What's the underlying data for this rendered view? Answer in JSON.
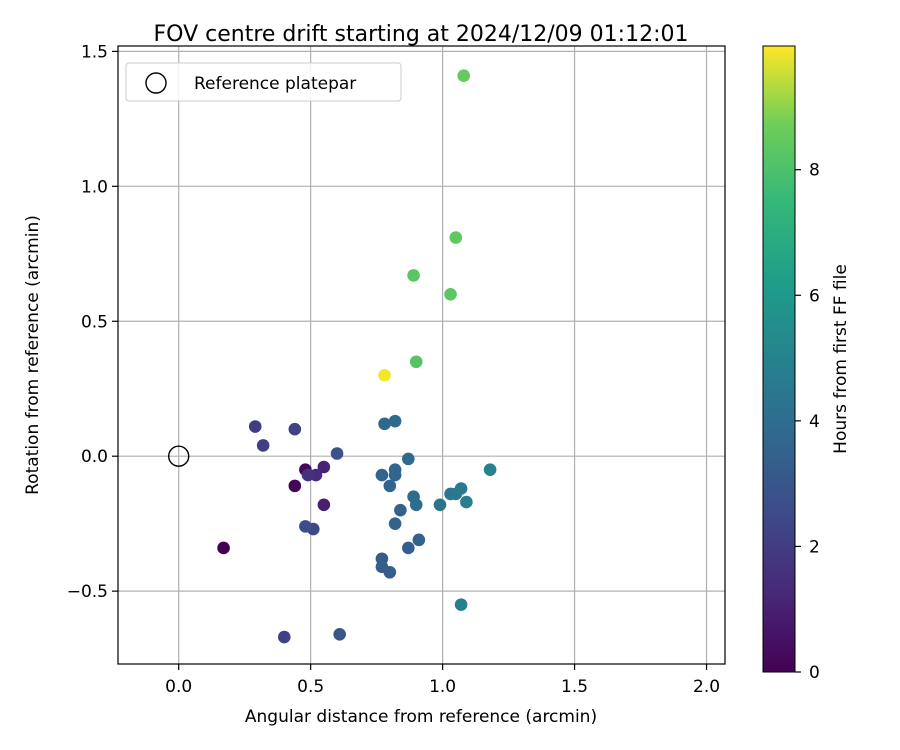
{
  "chart_data": {
    "type": "scatter",
    "title": "FOV centre drift starting at 2024/12/09 01:12:01",
    "xlabel": "Angular distance from reference (arcmin)",
    "ylabel": "Rotation from reference (arcmin)",
    "xlim": [
      -0.23,
      2.07
    ],
    "ylim": [
      -0.77,
      1.52
    ],
    "xticks": [
      0.0,
      0.5,
      1.0,
      1.5,
      2.0
    ],
    "xtick_labels": [
      "0.0",
      "0.5",
      "1.0",
      "1.5",
      "2.0"
    ],
    "yticks": [
      -0.5,
      0.0,
      0.5,
      1.0,
      1.5
    ],
    "ytick_labels": [
      "−0.5",
      "0.0",
      "0.5",
      "1.0",
      "1.5"
    ],
    "grid": true,
    "legend": {
      "placement": "top-left",
      "entries": [
        "Reference platepar"
      ]
    },
    "reference_point": {
      "x": 0.0,
      "y": 0.0,
      "label": "Reference platepar"
    },
    "colorbar": {
      "label": "Hours from first FF file",
      "colormap": "viridis",
      "range": [
        0,
        9.97
      ],
      "ticks": [
        0,
        2,
        4,
        6,
        8
      ],
      "tick_labels": [
        "0",
        "2",
        "4",
        "6",
        "8"
      ]
    },
    "points": [
      {
        "x": 0.17,
        "y": -0.34,
        "hours": 0.0
      },
      {
        "x": 0.44,
        "y": -0.11,
        "hours": 0.1
      },
      {
        "x": 0.48,
        "y": -0.05,
        "hours": 0.2
      },
      {
        "x": 0.55,
        "y": -0.18,
        "hours": 1.0
      },
      {
        "x": 0.55,
        "y": -0.04,
        "hours": 1.1
      },
      {
        "x": 0.52,
        "y": -0.07,
        "hours": 1.4
      },
      {
        "x": 0.49,
        "y": -0.07,
        "hours": 1.6
      },
      {
        "x": 0.29,
        "y": 0.11,
        "hours": 2.0
      },
      {
        "x": 0.32,
        "y": 0.04,
        "hours": 2.1
      },
      {
        "x": 0.44,
        "y": 0.1,
        "hours": 2.2
      },
      {
        "x": 0.4,
        "y": -0.67,
        "hours": 2.2
      },
      {
        "x": 0.51,
        "y": -0.27,
        "hours": 2.4
      },
      {
        "x": 0.48,
        "y": -0.26,
        "hours": 2.6
      },
      {
        "x": 0.6,
        "y": 0.01,
        "hours": 2.9
      },
      {
        "x": 0.61,
        "y": -0.66,
        "hours": 3.0
      },
      {
        "x": 0.77,
        "y": -0.38,
        "hours": 3.2
      },
      {
        "x": 0.77,
        "y": -0.41,
        "hours": 3.3
      },
      {
        "x": 0.8,
        "y": -0.43,
        "hours": 3.3
      },
      {
        "x": 0.87,
        "y": -0.34,
        "hours": 3.4
      },
      {
        "x": 0.91,
        "y": -0.31,
        "hours": 3.5
      },
      {
        "x": 0.82,
        "y": -0.25,
        "hours": 3.5
      },
      {
        "x": 0.84,
        "y": -0.2,
        "hours": 3.5
      },
      {
        "x": 0.8,
        "y": -0.11,
        "hours": 3.6
      },
      {
        "x": 0.77,
        "y": -0.07,
        "hours": 3.6
      },
      {
        "x": 0.82,
        "y": -0.05,
        "hours": 3.7
      },
      {
        "x": 0.82,
        "y": -0.07,
        "hours": 3.7
      },
      {
        "x": 0.87,
        "y": -0.01,
        "hours": 3.8
      },
      {
        "x": 0.78,
        "y": 0.12,
        "hours": 3.8
      },
      {
        "x": 0.82,
        "y": 0.13,
        "hours": 3.9
      },
      {
        "x": 0.89,
        "y": -0.15,
        "hours": 3.9
      },
      {
        "x": 0.9,
        "y": -0.18,
        "hours": 4.0
      },
      {
        "x": 0.99,
        "y": -0.18,
        "hours": 4.3
      },
      {
        "x": 1.03,
        "y": -0.14,
        "hours": 4.4
      },
      {
        "x": 1.05,
        "y": -0.14,
        "hours": 4.5
      },
      {
        "x": 1.07,
        "y": -0.12,
        "hours": 4.6
      },
      {
        "x": 1.09,
        "y": -0.17,
        "hours": 4.8
      },
      {
        "x": 1.07,
        "y": -0.55,
        "hours": 4.9
      },
      {
        "x": 1.18,
        "y": -0.05,
        "hours": 5.0
      },
      {
        "x": 0.9,
        "y": 0.35,
        "hours": 8.2
      },
      {
        "x": 1.03,
        "y": 0.6,
        "hours": 8.3
      },
      {
        "x": 0.89,
        "y": 0.67,
        "hours": 8.3
      },
      {
        "x": 1.05,
        "y": 0.81,
        "hours": 8.4
      },
      {
        "x": 1.08,
        "y": 1.41,
        "hours": 8.5
      },
      {
        "x": 0.78,
        "y": 0.3,
        "hours": 9.9
      }
    ]
  }
}
